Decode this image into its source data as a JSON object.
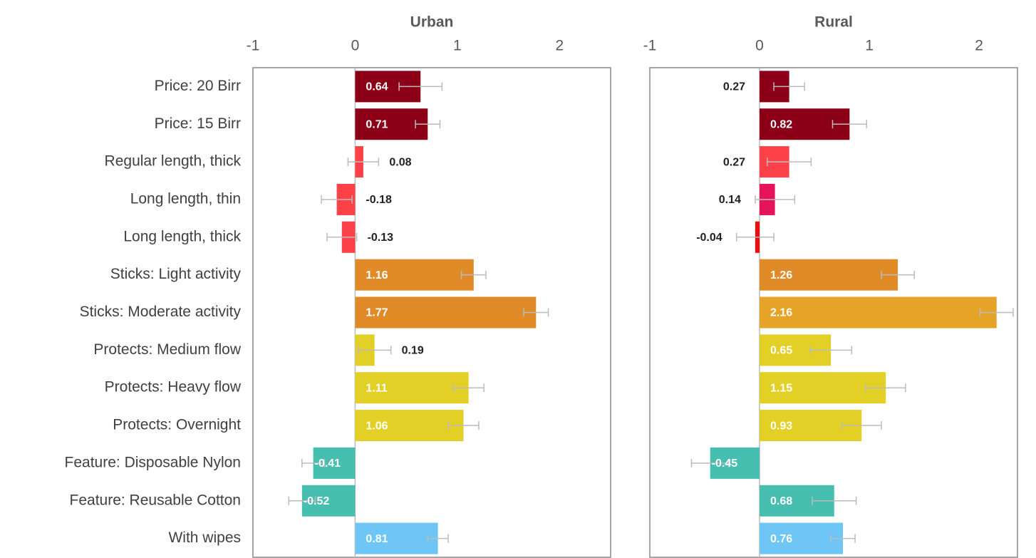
{
  "chart_data": [
    {
      "type": "bar",
      "title": "Urban",
      "categories": [
        "Price: 20 Birr",
        "Price: 15 Birr",
        "Regular length, thick",
        "Long length, thin",
        "Long length, thick",
        "Sticks: Light activity",
        "Sticks: Moderate activity",
        "Protects: Medium flow",
        "Protects: Heavy flow",
        "Protects: Overnight",
        "Feature: Disposable Nylon",
        "Feature: Reusable Cotton",
        "With wipes"
      ],
      "values": [
        0.64,
        0.71,
        0.08,
        -0.18,
        -0.13,
        1.16,
        1.77,
        0.19,
        1.11,
        1.06,
        -0.41,
        -0.52,
        0.81
      ],
      "errors": [
        0.21,
        0.12,
        0.15,
        0.15,
        0.145,
        0.12,
        0.12,
        0.16,
        0.15,
        0.15,
        0.11,
        0.13,
        0.1
      ],
      "colors": [
        "#8b0016",
        "#8b0016",
        "#fc4149",
        "#fc4149",
        "#fc4149",
        "#e08b28",
        "#e08b28",
        "#e3d026",
        "#e3d026",
        "#e3d026",
        "#47bfb0",
        "#47bfb0",
        "#6dc6f5"
      ],
      "xlim": [
        -1,
        2.5
      ],
      "xticks": [
        -1,
        0,
        1,
        2
      ]
    },
    {
      "type": "bar",
      "title": "Rural",
      "values": [
        0.27,
        0.82,
        0.27,
        0.14,
        -0.04,
        1.26,
        2.16,
        0.65,
        1.15,
        0.93,
        -0.45,
        0.68,
        0.76
      ],
      "errors": [
        0.14,
        0.155,
        0.2,
        0.18,
        0.17,
        0.15,
        0.15,
        0.19,
        0.18,
        0.18,
        0.17,
        0.2,
        0.11
      ],
      "colors": [
        "#8b0016",
        "#8b0016",
        "#fc4149",
        "#e5135a",
        "#e81010",
        "#e08b28",
        "#e5a427",
        "#e3d026",
        "#e3d026",
        "#e3d026",
        "#47bfb0",
        "#47bfb0",
        "#6dc6f5"
      ],
      "xlim": [
        -1,
        2.35
      ],
      "xticks": [
        -1,
        0,
        1,
        2
      ]
    }
  ]
}
